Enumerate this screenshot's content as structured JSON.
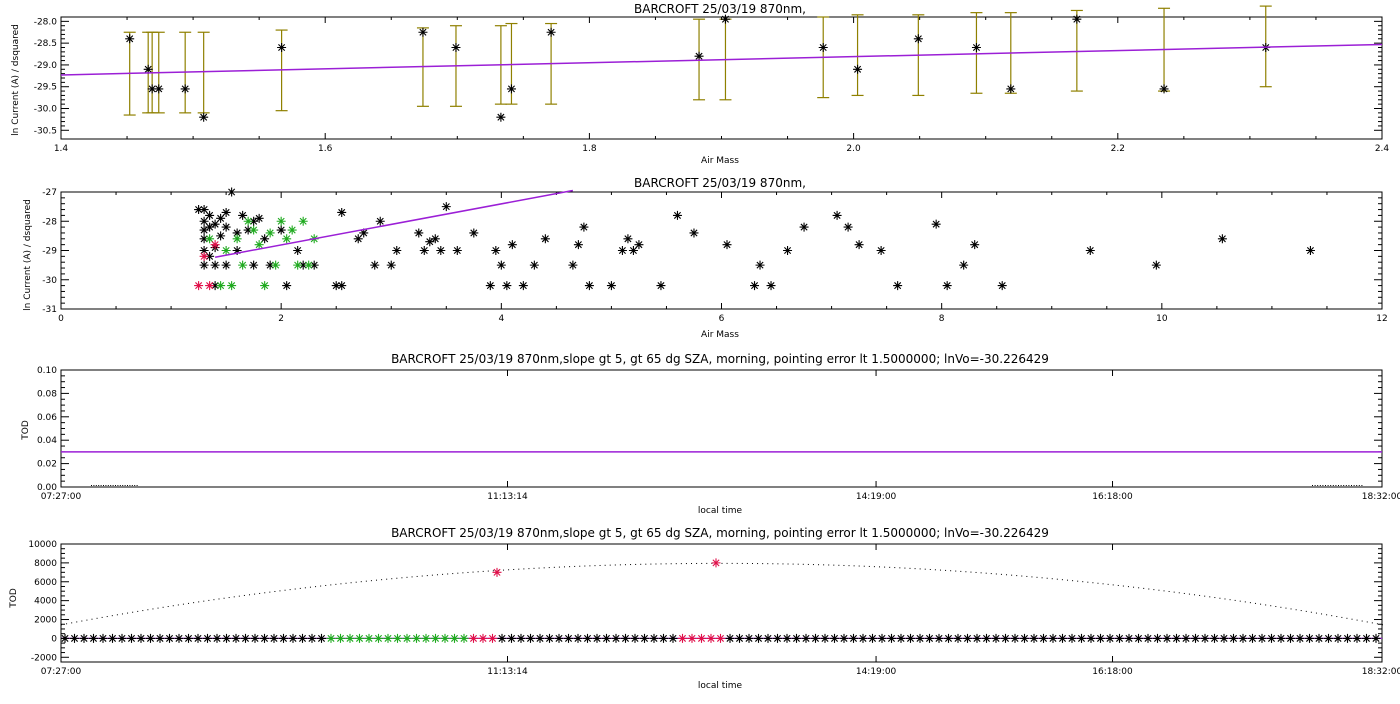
{
  "chart_data": [
    {
      "type": "scatter",
      "title": "BARCROFT 25/03/19 870nm,",
      "xlabel": "Air Mass",
      "ylabel": "ln Current (A) / dsquared",
      "xlim": [
        1.4,
        2.4
      ],
      "ylim": [
        -30.7,
        -27.9
      ],
      "xticks": [
        "1.4",
        "1.6",
        "1.8",
        "2.0",
        "2.2",
        "2.4"
      ],
      "yticks": [
        "-28.0",
        "-28.5",
        "-29.0",
        "-29.5",
        "-30.0",
        "-30.5"
      ],
      "points": [
        {
          "x": 1.452,
          "y": -28.4,
          "lo": -30.15,
          "hi": -28.25
        },
        {
          "x": 1.466,
          "y": -29.1,
          "lo": -30.1,
          "hi": -28.25
        },
        {
          "x": 1.469,
          "y": -29.55,
          "lo": -30.1,
          "hi": -28.25
        },
        {
          "x": 1.474,
          "y": -29.55,
          "lo": -30.1,
          "hi": -28.25
        },
        {
          "x": 1.494,
          "y": -29.55,
          "lo": -30.1,
          "hi": -28.25
        },
        {
          "x": 1.508,
          "y": -30.2,
          "lo": -30.1,
          "hi": -28.25
        },
        {
          "x": 1.567,
          "y": -28.6,
          "lo": -30.05,
          "hi": -28.2
        },
        {
          "x": 1.674,
          "y": -28.25,
          "lo": -29.95,
          "hi": -28.15
        },
        {
          "x": 1.699,
          "y": -28.6,
          "lo": -29.95,
          "hi": -28.1
        },
        {
          "x": 1.733,
          "y": -30.2,
          "lo": -29.9,
          "hi": -28.1
        },
        {
          "x": 1.741,
          "y": -29.55,
          "lo": -29.9,
          "hi": -28.05
        },
        {
          "x": 1.771,
          "y": -28.25,
          "lo": -29.9,
          "hi": -28.05
        },
        {
          "x": 1.883,
          "y": -28.8,
          "lo": -29.8,
          "hi": -27.95
        },
        {
          "x": 1.903,
          "y": -27.95,
          "lo": -29.8,
          "hi": -27.95
        },
        {
          "x": 1.977,
          "y": -28.6,
          "lo": -29.75,
          "hi": -27.9
        },
        {
          "x": 2.003,
          "y": -29.1,
          "lo": -29.7,
          "hi": -27.85
        },
        {
          "x": 2.049,
          "y": -28.4,
          "lo": -29.7,
          "hi": -27.85
        },
        {
          "x": 2.093,
          "y": -28.6,
          "lo": -29.65,
          "hi": -27.8
        },
        {
          "x": 2.119,
          "y": -29.55,
          "lo": -29.65,
          "hi": -27.8
        },
        {
          "x": 2.169,
          "y": -27.95,
          "lo": -29.6,
          "hi": -27.75
        },
        {
          "x": 2.235,
          "y": -29.55,
          "lo": -29.6,
          "hi": -27.7
        },
        {
          "x": 2.312,
          "y": -28.6,
          "lo": -29.5,
          "hi": -27.65
        }
      ],
      "fit": {
        "x": [
          1.4,
          2.4
        ],
        "y": [
          -29.23,
          -28.53
        ]
      }
    },
    {
      "type": "scatter",
      "title": "BARCROFT 25/03/19 870nm,",
      "xlabel": "Air Mass",
      "ylabel": "ln Current (A) / dsquared",
      "xlim": [
        0,
        12
      ],
      "ylim": [
        -31,
        -27
      ],
      "xticks": [
        "0",
        "2",
        "4",
        "6",
        "8",
        "10",
        "12"
      ],
      "yticks": [
        "-27",
        "-28",
        "-29",
        "-30",
        "-31"
      ],
      "black_points": [
        [
          1.25,
          -27.6
        ],
        [
          1.3,
          -27.6
        ],
        [
          1.3,
          -28.0
        ],
        [
          1.3,
          -28.3
        ],
        [
          1.3,
          -28.6
        ],
        [
          1.3,
          -29.0
        ],
        [
          1.3,
          -29.5
        ],
        [
          1.35,
          -27.8
        ],
        [
          1.35,
          -28.2
        ],
        [
          1.35,
          -29.2
        ],
        [
          1.4,
          -28.1
        ],
        [
          1.4,
          -28.9
        ],
        [
          1.4,
          -29.5
        ],
        [
          1.4,
          -30.2
        ],
        [
          1.45,
          -27.9
        ],
        [
          1.45,
          -28.5
        ],
        [
          1.5,
          -27.7
        ],
        [
          1.5,
          -28.2
        ],
        [
          1.5,
          -29.5
        ],
        [
          1.55,
          -27.0
        ],
        [
          1.6,
          -28.4
        ],
        [
          1.6,
          -29.0
        ],
        [
          1.65,
          -27.8
        ],
        [
          1.7,
          -28.3
        ],
        [
          1.75,
          -28.0
        ],
        [
          1.75,
          -29.5
        ],
        [
          1.8,
          -27.9
        ],
        [
          1.85,
          -28.6
        ],
        [
          1.9,
          -29.5
        ],
        [
          2.0,
          -28.3
        ],
        [
          2.05,
          -30.2
        ],
        [
          2.15,
          -29.0
        ],
        [
          2.2,
          -29.5
        ],
        [
          2.3,
          -29.5
        ],
        [
          2.5,
          -30.2
        ],
        [
          2.55,
          -30.2
        ],
        [
          2.55,
          -27.7
        ],
        [
          2.7,
          -28.6
        ],
        [
          2.75,
          -28.4
        ],
        [
          2.85,
          -29.5
        ],
        [
          2.9,
          -28.0
        ],
        [
          3.0,
          -29.5
        ],
        [
          3.05,
          -29.0
        ],
        [
          3.25,
          -28.4
        ],
        [
          3.3,
          -29.0
        ],
        [
          3.35,
          -28.7
        ],
        [
          3.4,
          -28.6
        ],
        [
          3.45,
          -29.0
        ],
        [
          3.5,
          -27.5
        ],
        [
          3.6,
          -29.0
        ],
        [
          3.75,
          -28.4
        ],
        [
          3.9,
          -30.2
        ],
        [
          3.95,
          -29.0
        ],
        [
          4.0,
          -29.5
        ],
        [
          4.05,
          -30.2
        ],
        [
          4.1,
          -28.8
        ],
        [
          4.2,
          -30.2
        ],
        [
          4.3,
          -29.5
        ],
        [
          4.4,
          -28.6
        ],
        [
          4.65,
          -29.5
        ],
        [
          4.7,
          -28.8
        ],
        [
          4.75,
          -28.2
        ],
        [
          4.8,
          -30.2
        ],
        [
          5.0,
          -30.2
        ],
        [
          5.1,
          -29.0
        ],
        [
          5.15,
          -28.6
        ],
        [
          5.2,
          -29.0
        ],
        [
          5.25,
          -28.8
        ],
        [
          5.45,
          -30.2
        ],
        [
          5.6,
          -27.8
        ],
        [
          5.75,
          -28.4
        ],
        [
          6.05,
          -28.8
        ],
        [
          6.3,
          -30.2
        ],
        [
          6.35,
          -29.5
        ],
        [
          6.45,
          -30.2
        ],
        [
          6.6,
          -29.0
        ],
        [
          6.75,
          -28.2
        ],
        [
          7.05,
          -27.8
        ],
        [
          7.15,
          -28.2
        ],
        [
          7.25,
          -28.8
        ],
        [
          7.45,
          -29.0
        ],
        [
          7.6,
          -30.2
        ],
        [
          7.95,
          -28.1
        ],
        [
          8.05,
          -30.2
        ],
        [
          8.2,
          -29.5
        ],
        [
          8.3,
          -28.8
        ],
        [
          8.55,
          -30.2
        ],
        [
          9.35,
          -29.0
        ],
        [
          9.95,
          -29.5
        ],
        [
          10.55,
          -28.6
        ],
        [
          11.35,
          -29.0
        ]
      ],
      "green_points": [
        [
          1.35,
          -28.6
        ],
        [
          1.45,
          -30.2
        ],
        [
          1.5,
          -29.0
        ],
        [
          1.55,
          -30.2
        ],
        [
          1.6,
          -28.6
        ],
        [
          1.65,
          -29.5
        ],
        [
          1.7,
          -28.0
        ],
        [
          1.75,
          -28.3
        ],
        [
          1.8,
          -28.8
        ],
        [
          1.85,
          -30.2
        ],
        [
          1.9,
          -28.4
        ],
        [
          1.95,
          -29.5
        ],
        [
          2.0,
          -28.0
        ],
        [
          2.05,
          -28.6
        ],
        [
          2.1,
          -28.3
        ],
        [
          2.15,
          -29.5
        ],
        [
          2.2,
          -28.0
        ],
        [
          2.25,
          -29.5
        ],
        [
          2.3,
          -28.6
        ]
      ],
      "red_points": [
        [
          1.25,
          -30.2
        ],
        [
          1.3,
          -29.2
        ],
        [
          1.35,
          -30.2
        ],
        [
          1.4,
          -28.8
        ]
      ],
      "fit": {
        "x": [
          1.4,
          4.65
        ],
        "y": [
          -29.23,
          -26.95
        ]
      }
    },
    {
      "type": "line",
      "title": "BARCROFT 25/03/19 870nm,slope gt 5, gt 65 dg SZA, morning, pointing error lt 1.5000000; lnVo=-30.226429",
      "xlabel": "local time",
      "ylabel": "TOD",
      "xlim": [
        "07:27:00",
        "18:32:00"
      ],
      "ylim": [
        0,
        0.1
      ],
      "xticks": [
        "07:27:00",
        "11:13:14",
        "14:19:00",
        "16:18:00",
        "18:32:00"
      ],
      "yticks": [
        "0.10",
        "0.08",
        "0.06",
        "0.04",
        "0.02",
        "0.00"
      ],
      "series_value": 0.03
    },
    {
      "type": "scatter",
      "title": "BARCROFT 25/03/19 870nm,slope gt 5, gt 65 dg SZA, morning, pointing error lt 1.5000000; lnVo=-30.226429",
      "xlabel": "local time",
      "ylabel": "TOD",
      "xlim": [
        "07:27:00",
        "18:32:00"
      ],
      "ylim": [
        -2500,
        10000
      ],
      "xticks": [
        "07:27:00",
        "11:13:14",
        "14:19:00",
        "16:18:00",
        "18:32:00"
      ],
      "yticks": [
        "10000",
        "8000",
        "6000",
        "4000",
        "2000",
        "0",
        "-2000"
      ],
      "dots_curve": {
        "peak_time": "12:45:00",
        "peak_value": 8000,
        "edge_value": 1500
      },
      "red_points": [
        {
          "x": "11:13:14",
          "y": 7000
        },
        {
          "x": "12:55:00",
          "y": 8000
        }
      ],
      "baseline_value": 0
    }
  ]
}
